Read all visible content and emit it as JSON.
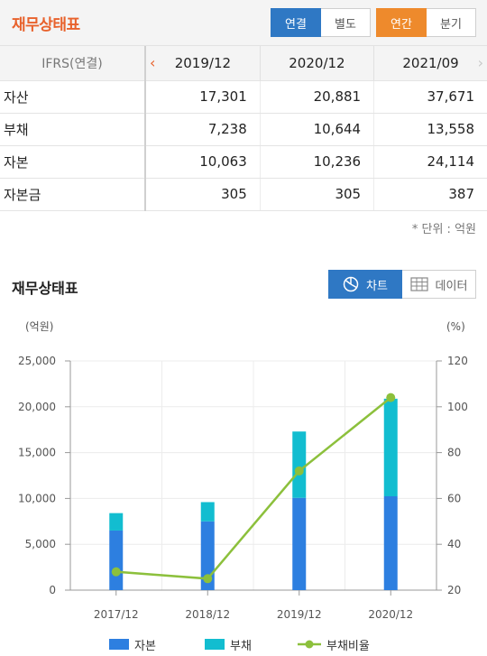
{
  "header": {
    "title": "재무상태표",
    "basis_tabs": [
      {
        "label": "연결",
        "active": true
      },
      {
        "label": "별도",
        "active": false
      }
    ],
    "period_tabs": [
      {
        "label": "연간",
        "active": true
      },
      {
        "label": "분기",
        "active": false
      }
    ]
  },
  "table": {
    "corner_label": "IFRS(연결)",
    "periods": [
      "2019/12",
      "2020/12",
      "2021/09"
    ],
    "rows": [
      {
        "label": "자산",
        "values": [
          "17,301",
          "20,881",
          "37,671"
        ]
      },
      {
        "label": "부채",
        "values": [
          "7,238",
          "10,644",
          "13,558"
        ]
      },
      {
        "label": "자본",
        "values": [
          "10,063",
          "10,236",
          "24,114"
        ]
      },
      {
        "label": "자본금",
        "values": [
          "305",
          "305",
          "387"
        ]
      }
    ],
    "unit_note": "* 단위 : 억원"
  },
  "chart_section": {
    "title": "재무상태표",
    "view_tabs": [
      {
        "label": "차트",
        "icon": "pie-chart-icon",
        "active": true
      },
      {
        "label": "데이터",
        "icon": "table-grid-icon",
        "active": false
      }
    ]
  },
  "colors": {
    "accent_orange": "#e8622c",
    "tab_blue": "#2f78c4",
    "tab_orange": "#ee8a2c",
    "equity_bar": "#2d7fe0",
    "liability_bar": "#12bdd0",
    "ratio_line": "#8cc03c"
  },
  "chart_data": {
    "type": "bar",
    "stacked": true,
    "categories": [
      "2017/12",
      "2018/12",
      "2019/12",
      "2020/12"
    ],
    "series": [
      {
        "name": "자본",
        "axis": "left",
        "color": "#2d7fe0",
        "values": [
          6500,
          7500,
          10063,
          10236
        ]
      },
      {
        "name": "부채",
        "axis": "left",
        "color": "#12bdd0",
        "values": [
          1900,
          2100,
          7238,
          10644
        ]
      },
      {
        "name": "부채비율",
        "axis": "right",
        "type": "line",
        "color": "#8cc03c",
        "values": [
          28,
          25,
          72,
          104
        ]
      }
    ],
    "ylabel_left": "(억원)",
    "ylabel_right": "(%)",
    "ylim_left": [
      0,
      25000
    ],
    "yticks_left": [
      "0",
      "5,000",
      "10,000",
      "15,000",
      "20,000",
      "25,000"
    ],
    "ylim_right": [
      20,
      120
    ],
    "yticks_right": [
      "20",
      "40",
      "60",
      "80",
      "100",
      "120"
    ],
    "grid": true,
    "legend_position": "bottom"
  }
}
